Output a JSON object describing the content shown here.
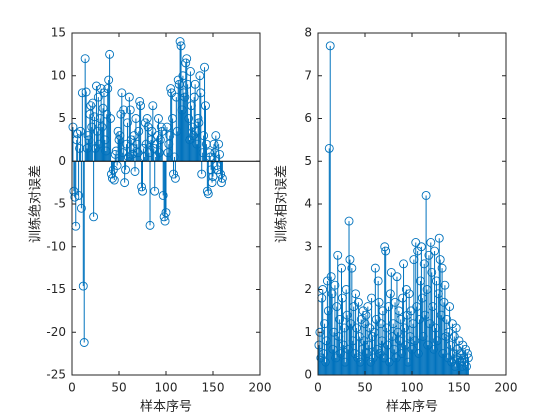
{
  "chart_data": [
    {
      "type": "stem",
      "ylabel": "训练绝对误差",
      "xlabel": "样本序号",
      "color": "#0072bd",
      "xlim": [
        0,
        200
      ],
      "xticks": [
        0,
        50,
        100,
        150,
        200
      ],
      "ylim": [
        -25,
        15
      ],
      "yticks": [
        -25,
        -20,
        -15,
        -10,
        -5,
        0,
        5,
        10,
        15
      ],
      "x": [
        1,
        2,
        3,
        4,
        5,
        6,
        7,
        8,
        9,
        10,
        11,
        12,
        13,
        14,
        15,
        16,
        17,
        18,
        19,
        20,
        21,
        22,
        23,
        24,
        25,
        26,
        27,
        28,
        29,
        30,
        31,
        32,
        33,
        34,
        35,
        36,
        37,
        38,
        39,
        40,
        41,
        42,
        43,
        44,
        45,
        46,
        47,
        48,
        49,
        50,
        51,
        52,
        53,
        54,
        55,
        56,
        57,
        58,
        59,
        60,
        61,
        62,
        63,
        64,
        65,
        66,
        67,
        68,
        69,
        70,
        71,
        72,
        73,
        74,
        75,
        76,
        77,
        78,
        79,
        80,
        81,
        82,
        83,
        84,
        85,
        86,
        87,
        88,
        89,
        90,
        91,
        92,
        93,
        94,
        95,
        96,
        97,
        98,
        99,
        100,
        101,
        102,
        103,
        104,
        105,
        106,
        107,
        108,
        109,
        110,
        111,
        112,
        113,
        114,
        115,
        116,
        117,
        118,
        119,
        120,
        121,
        122,
        123,
        124,
        125,
        126,
        127,
        128,
        129,
        130,
        131,
        132,
        133,
        134,
        135,
        136,
        137,
        138,
        139,
        140,
        141,
        142,
        143,
        144,
        145,
        146,
        147,
        148,
        149,
        150,
        151,
        152,
        153,
        154,
        155,
        156,
        157,
        158,
        159,
        160
      ],
      "values": [
        4,
        -3.5,
        -4.2,
        -7.6,
        2.5,
        3.2,
        -4,
        1.5,
        3.5,
        -5.5,
        8,
        -14.6,
        -21.2,
        12,
        8.1,
        1.5,
        3,
        2.5,
        5.5,
        6.5,
        4,
        6.8,
        -6.5,
        5.2,
        1.5,
        8.8,
        3.5,
        7.5,
        2,
        5,
        8.5,
        4,
        6.2,
        8,
        2.5,
        1.2,
        5.5,
        8.5,
        9.5,
        12.5,
        5,
        -1.5,
        -2,
        -1,
        -2.2,
        0.8,
        1.2,
        -0.5,
        3.5,
        2.5,
        3,
        5.5,
        8,
        1,
        6,
        -2.5,
        -1,
        2,
        4.5,
        0.5,
        7.5,
        6,
        2.5,
        0.8,
        1.5,
        3,
        -1.2,
        5,
        2,
        1,
        3.5,
        7,
        6.5,
        -3,
        -3.5,
        1.5,
        0.5,
        4.5,
        2,
        5,
        4,
        1,
        -7.5,
        2.5,
        3.5,
        6.5,
        1.5,
        -3.5,
        0.5,
        2,
        3,
        5,
        1,
        2.5,
        4,
        3.5,
        -4,
        -6.5,
        -7,
        -6,
        4,
        1,
        2,
        3,
        8.5,
        8,
        5,
        -1.5,
        0.5,
        -2,
        7.5,
        3.5,
        9.5,
        9,
        14,
        13.5,
        6,
        10,
        8,
        7.5,
        11.5,
        12,
        9,
        5,
        2.5,
        10.5,
        6.5,
        4,
        3,
        7.5,
        9,
        3.5,
        2,
        5,
        4.5,
        10,
        8,
        -1.5,
        1,
        3,
        11,
        6.5,
        2,
        -3.5,
        -3.8,
        1,
        0.5,
        -1,
        -2.5,
        -1.8,
        2,
        1,
        3,
        -0.5,
        -1,
        2,
        0.8,
        -1.5,
        -2.5,
        -2
      ]
    },
    {
      "type": "stem",
      "ylabel": "训练相对误差",
      "xlabel": "样本序号",
      "color": "#0072bd",
      "xlim": [
        0,
        200
      ],
      "xticks": [
        0,
        50,
        100,
        150,
        200
      ],
      "ylim": [
        0,
        8
      ],
      "yticks": [
        0,
        1,
        2,
        3,
        4,
        5,
        6,
        7,
        8
      ],
      "x": [
        1,
        2,
        3,
        4,
        5,
        6,
        7,
        8,
        9,
        10,
        11,
        12,
        13,
        14,
        15,
        16,
        17,
        18,
        19,
        20,
        21,
        22,
        23,
        24,
        25,
        26,
        27,
        28,
        29,
        30,
        31,
        32,
        33,
        34,
        35,
        36,
        37,
        38,
        39,
        40,
        41,
        42,
        43,
        44,
        45,
        46,
        47,
        48,
        49,
        50,
        51,
        52,
        53,
        54,
        55,
        56,
        57,
        58,
        59,
        60,
        61,
        62,
        63,
        64,
        65,
        66,
        67,
        68,
        69,
        70,
        71,
        72,
        73,
        74,
        75,
        76,
        77,
        78,
        79,
        80,
        81,
        82,
        83,
        84,
        85,
        86,
        87,
        88,
        89,
        90,
        91,
        92,
        93,
        94,
        95,
        96,
        97,
        98,
        99,
        100,
        101,
        102,
        103,
        104,
        105,
        106,
        107,
        108,
        109,
        110,
        111,
        112,
        113,
        114,
        115,
        116,
        117,
        118,
        119,
        120,
        121,
        122,
        123,
        124,
        125,
        126,
        127,
        128,
        129,
        130,
        131,
        132,
        133,
        134,
        135,
        136,
        137,
        138,
        139,
        140,
        141,
        142,
        143,
        144,
        145,
        146,
        147,
        148,
        149,
        150,
        151,
        152,
        153,
        154,
        155,
        156,
        157,
        158,
        159,
        160
      ],
      "values": [
        0.7,
        1,
        0.4,
        1.8,
        2,
        0.5,
        1.2,
        0.3,
        0.8,
        2.2,
        1.5,
        5.3,
        7.7,
        2.3,
        1.9,
        0.6,
        1,
        2.1,
        0.4,
        1.6,
        2.8,
        0.9,
        1.3,
        0.5,
        2.5,
        1.8,
        0.7,
        1.1,
        0.3,
        2,
        1.4,
        0.6,
        3.6,
        2.7,
        1.2,
        2.5,
        0.8,
        1.6,
        0.5,
        1.9,
        1.1,
        0.4,
        1.7,
        0.9,
        0.3,
        1.3,
        0.6,
        1.5,
        0.8,
        1.2,
        1.4,
        0.5,
        1.6,
        0.7,
        1.1,
        0.3,
        1.8,
        0.9,
        0.4,
        1,
        2.5,
        1.3,
        0.6,
        2.2,
        1.7,
        0.5,
        1.2,
        0.8,
        1.5,
        0.4,
        3,
        2.9,
        1.1,
        0.7,
        1.6,
        0.3,
        1.9,
        2.4,
        0.9,
        1.2,
        0.6,
        1.7,
        0.4,
        2.3,
        1,
        1.5,
        0.8,
        1.3,
        0.5,
        1.8,
        2.6,
        1.1,
        0.7,
        2,
        1.4,
        0.3,
        1.9,
        0.9,
        1.5,
        0.6,
        1.2,
        2.7,
        0.8,
        3.1,
        1.6,
        2.9,
        0.5,
        1.3,
        2.2,
        3,
        1.8,
        0.9,
        2.6,
        1.4,
        4.2,
        2,
        0.7,
        2.8,
        1.2,
        3.1,
        2.4,
        1.6,
        0.6,
        2.9,
        1.1,
        2.2,
        0.8,
        1.9,
        3.2,
        2.7,
        1.4,
        2.5,
        0.5,
        1.7,
        2.1,
        0.9,
        1.3,
        0.4,
        1,
        1.6,
        0.7,
        0.3,
        1.2,
        0.5,
        0.9,
        0.2,
        1.1,
        0.6,
        0.4,
        0.8,
        0.3,
        0.5,
        0.2,
        0.7,
        0.4,
        0.3,
        0.6,
        0.2,
        0.5,
        0.4
      ]
    }
  ]
}
